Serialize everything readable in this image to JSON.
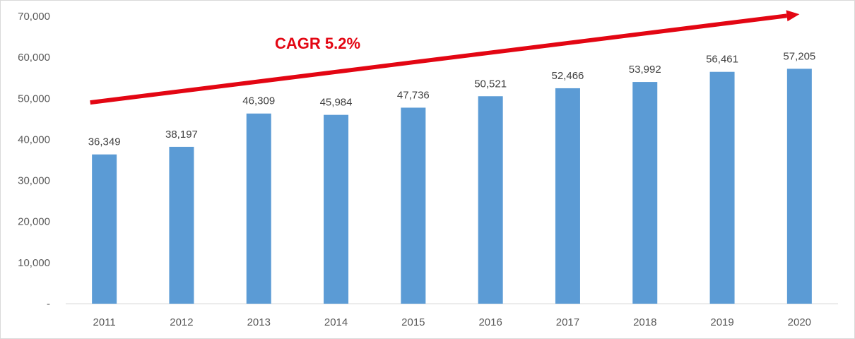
{
  "chart_data": {
    "type": "bar",
    "categories": [
      "2011",
      "2012",
      "2013",
      "2014",
      "2015",
      "2016",
      "2017",
      "2018",
      "2019",
      "2020"
    ],
    "values": [
      36349,
      38197,
      46309,
      45984,
      47736,
      50521,
      52466,
      53992,
      56461,
      57205
    ],
    "data_labels": [
      "36,349",
      "38,197",
      "46,309",
      "45,984",
      "47,736",
      "50,521",
      "52,466",
      "53,992",
      "56,461",
      "57,205"
    ],
    "y_ticks": [
      0,
      10000,
      20000,
      30000,
      40000,
      50000,
      60000,
      70000
    ],
    "y_tick_labels": [
      "-",
      "10,000",
      "20,000",
      "30,000",
      "40,000",
      "50,000",
      "60,000",
      "70,000"
    ],
    "ylim": [
      0,
      70000
    ],
    "grid": false,
    "legend": "none",
    "annotation": {
      "text": "CAGR 5.2%",
      "arrow_from": [
        "2011",
        49000
      ],
      "arrow_to": [
        "2020",
        70500
      ]
    },
    "colors": {
      "bar": "#5b9bd5",
      "annotation": "#e30613",
      "axis": "#d9d9d9"
    }
  }
}
